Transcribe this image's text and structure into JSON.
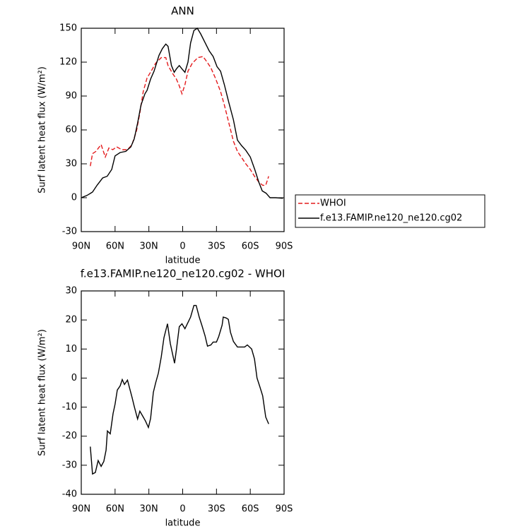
{
  "chart_data": [
    {
      "type": "line",
      "title": "ANN",
      "xlabel": "latitude",
      "ylabel": "Surf latent heat flux (W/m²)",
      "xlim": [
        90,
        -90
      ],
      "xticks": [
        {
          "value": 90,
          "label": "90N"
        },
        {
          "value": 60,
          "label": "60N"
        },
        {
          "value": 30,
          "label": "30N"
        },
        0,
        {
          "value": -30,
          "label": "30S"
        },
        {
          "value": -60,
          "label": "60S"
        },
        {
          "value": -90,
          "label": "90S"
        }
      ],
      "ylim": [
        -30,
        150
      ],
      "yticks": [
        -30,
        0,
        30,
        60,
        90,
        120,
        150
      ],
      "legend": "right",
      "series": [
        {
          "name": "WHOI",
          "color": "#e41a1c",
          "dash": true,
          "x": [
            82,
            80,
            77,
            72.4,
            68.7,
            65.5,
            62,
            58.6,
            54,
            49,
            45,
            41,
            38,
            35,
            31.6,
            28,
            24,
            19,
            15,
            13,
            9,
            5.6,
            3,
            0.6,
            -2,
            -4.7,
            -8.5,
            -13.5,
            -18,
            -21.7,
            -25,
            -29,
            -33.6,
            -37,
            -41,
            -45,
            -48.6,
            -52,
            -56,
            -60,
            -63.7,
            -67.5,
            -71,
            -73.7,
            -76.3
          ],
          "values": [
            28,
            39,
            41,
            47,
            36,
            44,
            42.5,
            45,
            42.5,
            42.5,
            47,
            59,
            75,
            94,
            106,
            112,
            119,
            124,
            124,
            117,
            110,
            105,
            99,
            92,
            100,
            112,
            119,
            124,
            125,
            120,
            115,
            106,
            94,
            82,
            66,
            50,
            41,
            36,
            30,
            25,
            19,
            14,
            11,
            11,
            19
          ]
        },
        {
          "name": "f.e13.FAMIP.ne120_ne120.cg02",
          "color": "#000000",
          "dash": false,
          "x": [
            90,
            85,
            80,
            76,
            71,
            67,
            63,
            60,
            55.5,
            50.5,
            46,
            43,
            40,
            37,
            33.5,
            31.6,
            28.5,
            25.4,
            21,
            18,
            15,
            13,
            10,
            7.5,
            5.6,
            3,
            0.6,
            -2,
            -4.7,
            -7,
            -10,
            -13,
            -16,
            -20,
            -23.5,
            -27,
            -30.5,
            -33.6,
            -37,
            -41,
            -45,
            -48.6,
            -52.4,
            -56,
            -60,
            -64,
            -67.5,
            -70.6,
            -74,
            -77.5,
            -82.5,
            -89
          ],
          "values": [
            0,
            2,
            5,
            11,
            17.5,
            19,
            25,
            37,
            40,
            41,
            45,
            52,
            66,
            82,
            92,
            95,
            105,
            112,
            126,
            132,
            136,
            134,
            117,
            111,
            114,
            117,
            114,
            111,
            120,
            137,
            148,
            150,
            145,
            137,
            130,
            125,
            116,
            112,
            100,
            84,
            69,
            51,
            46,
            42,
            36,
            25,
            14,
            6,
            4,
            0,
            0,
            -0.5
          ]
        }
      ]
    },
    {
      "type": "line",
      "title": "f.e13.FAMIP.ne120_ne120.cg02 - WHOI",
      "xlabel": "latitude",
      "ylabel": "Surf latent heat flux (W/m²)",
      "xlim": [
        90,
        -90
      ],
      "xticks": [
        {
          "value": 90,
          "label": "90N"
        },
        {
          "value": 60,
          "label": "60N"
        },
        {
          "value": 30,
          "label": "30N"
        },
        0,
        {
          "value": -30,
          "label": "30S"
        },
        {
          "value": -60,
          "label": "60S"
        },
        {
          "value": -90,
          "label": "90S"
        }
      ],
      "ylim": [
        -40,
        30
      ],
      "yticks": [
        -40,
        -30,
        -20,
        -10,
        0,
        10,
        20,
        30
      ],
      "series": [
        {
          "color": "#000000",
          "dash": false,
          "x": [
            82,
            80,
            77.5,
            75,
            72.4,
            70,
            68,
            66.8,
            64.3,
            61.8,
            60,
            58,
            55.5,
            53.6,
            51.7,
            49,
            47.3,
            45,
            43,
            40,
            38,
            35,
            33,
            30.4,
            28.5,
            26,
            24,
            21.6,
            19,
            16.6,
            13.5,
            11,
            7.2,
            5.6,
            3,
            0.6,
            -2,
            -4.5,
            -7,
            -10,
            -12,
            -14.7,
            -17,
            -19.8,
            -22,
            -25,
            -27,
            -30,
            -32,
            -35,
            -36,
            -38.6,
            -40.5,
            -42.4,
            -45,
            -48.6,
            -52,
            -55,
            -57.4,
            -61.2,
            -63.7,
            -66,
            -68.7,
            -71,
            -73.7,
            -76.3
          ],
          "values": [
            -23.6,
            -33,
            -32.5,
            -28.4,
            -30.4,
            -28.7,
            -24.8,
            -18.2,
            -19.2,
            -12.2,
            -9,
            -4.1,
            -2.7,
            -0.5,
            -2.2,
            -0.7,
            -3.2,
            -6.6,
            -9.7,
            -14.1,
            -11.4,
            -13.4,
            -14.8,
            -17,
            -13.9,
            -4.9,
            -1.7,
            1.7,
            7.3,
            13.9,
            18.7,
            11.9,
            5.1,
            9.7,
            17.7,
            18.7,
            17,
            19,
            21,
            25,
            25,
            21,
            18.2,
            14.6,
            11,
            11.4,
            12.4,
            12.4,
            14.3,
            18.2,
            21,
            20.7,
            20.2,
            15.8,
            12.6,
            10.7,
            10.7,
            10.7,
            11.4,
            10,
            6.6,
            0,
            -3.2,
            -6.1,
            -13.4,
            -15.8
          ]
        }
      ]
    }
  ]
}
